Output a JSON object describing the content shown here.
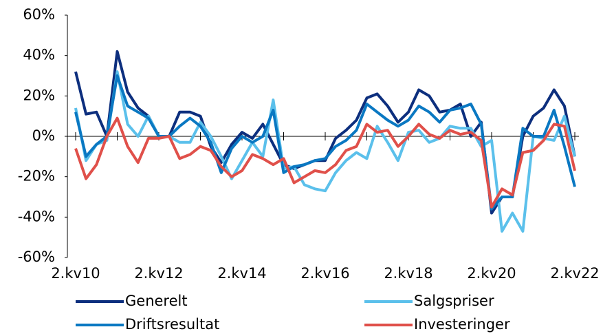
{
  "chart_data": {
    "type": "line",
    "categories": [
      "2.kv10",
      null,
      null,
      null,
      null,
      null,
      null,
      null,
      "2.kv12",
      null,
      null,
      null,
      null,
      null,
      null,
      null,
      "2.kv14",
      null,
      null,
      null,
      null,
      null,
      null,
      null,
      "2.kv16",
      null,
      null,
      null,
      null,
      null,
      null,
      null,
      "2.kv18",
      null,
      null,
      null,
      null,
      null,
      null,
      null,
      "2.kv20",
      null,
      null,
      null,
      null,
      null,
      null,
      null,
      "2.kv22"
    ],
    "series": [
      {
        "name": "Generelt",
        "color": "#0d2f7e",
        "values": [
          32,
          11,
          12,
          0,
          42,
          22,
          14,
          10,
          0,
          0,
          12,
          12,
          10,
          -5,
          -13,
          -4,
          2,
          -1,
          6,
          -4,
          -14,
          -16,
          -14,
          -12,
          -12,
          -1,
          3,
          8,
          19,
          21,
          15,
          7,
          12,
          23,
          20,
          12,
          13,
          16,
          0,
          7,
          -38,
          -30,
          -30,
          0,
          10,
          14,
          23,
          15,
          -10
        ]
      },
      {
        "name": "Salgspriser",
        "color": "#5bc0eb",
        "values": [
          14,
          -12,
          -4,
          -2,
          32,
          6,
          0,
          10,
          0,
          0,
          -3,
          -3,
          7,
          0,
          -10,
          -21,
          -12,
          -3,
          -10,
          18,
          -16,
          -15,
          -24,
          -26,
          -27,
          -18,
          -12,
          -8,
          -11,
          5,
          -3,
          -12,
          2,
          3,
          -3,
          -1,
          5,
          4,
          4,
          -5,
          -2,
          -47,
          -38,
          -47,
          0,
          -1,
          -2,
          10,
          -10
        ]
      },
      {
        "name": "Driftsresultat",
        "color": "#0a78c2",
        "values": [
          12,
          -10,
          -4,
          0,
          30,
          15,
          12,
          9,
          0,
          0,
          5,
          9,
          5,
          -3,
          -18,
          -6,
          0,
          -3,
          0,
          13,
          -18,
          -15,
          -14,
          -12,
          -11,
          -5,
          -2,
          3,
          16,
          12,
          8,
          5,
          8,
          15,
          12,
          7,
          13,
          14,
          16,
          6,
          -36,
          -30,
          -30,
          4,
          0,
          0,
          13,
          -5,
          -25
        ]
      },
      {
        "name": "Investeringer",
        "color": "#e0504a",
        "values": [
          -6,
          -21,
          -14,
          0,
          9,
          -5,
          -13,
          -1,
          -1,
          0,
          -11,
          -9,
          -5,
          -7,
          -15,
          -20,
          -17,
          -9,
          -11,
          -14,
          -11,
          -23,
          -20,
          -17,
          -18,
          -14,
          -7,
          -5,
          6,
          2,
          3,
          -5,
          0,
          6,
          1,
          -1,
          3,
          1,
          2,
          -2,
          -35,
          -26,
          -29,
          -8,
          -7,
          -2,
          6,
          5,
          -17
        ]
      }
    ],
    "ylim": [
      -60,
      60
    ],
    "yticks": [
      {
        "value": -60,
        "label": "-60%"
      },
      {
        "value": -40,
        "label": "-40%"
      },
      {
        "value": -20,
        "label": "-20%"
      },
      {
        "value": 0,
        "label": "0%"
      },
      {
        "value": 20,
        "label": "20%"
      },
      {
        "value": 40,
        "label": "40%"
      },
      {
        "value": 60,
        "label": "60%"
      }
    ],
    "legend": "bottom"
  }
}
